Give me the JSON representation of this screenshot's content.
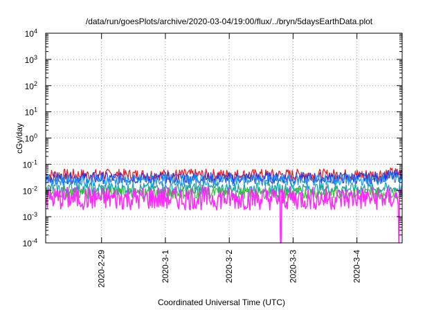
{
  "chart_data": {
    "type": "line",
    "title": "/data/run/goesPlots/archive/2020-03-04/19:00/flux/../bryn/5daysEarthData.plot",
    "xlabel": "Coordinated Universal Time (UTC)",
    "ylabel": "cGy/day",
    "y_scale": "log",
    "ylim": [
      0.0001,
      10000
    ],
    "y_ticks": [
      {
        "value": 10000,
        "base": "10",
        "exp": "4"
      },
      {
        "value": 1000,
        "base": "10",
        "exp": "3"
      },
      {
        "value": 100,
        "base": "10",
        "exp": "2"
      },
      {
        "value": 10,
        "base": "10",
        "exp": "1"
      },
      {
        "value": 1,
        "base": "10",
        "exp": "0"
      },
      {
        "value": 0.1,
        "base": "10",
        "exp": "-1"
      },
      {
        "value": 0.01,
        "base": "10",
        "exp": "-2"
      },
      {
        "value": 0.001,
        "base": "10",
        "exp": "-3"
      },
      {
        "value": 0.0001,
        "base": "10",
        "exp": "-4"
      }
    ],
    "xlim": [
      "2020-02-28 03:00",
      "2020-03-04 17:00"
    ],
    "x_ticks": [
      {
        "value": "2020-02-29",
        "label": "2020-2-29"
      },
      {
        "value": "2020-03-01",
        "label": "2020-3-1"
      },
      {
        "value": "2020-03-02",
        "label": "2020-3-2"
      },
      {
        "value": "2020-03-03",
        "label": "2020-3-3"
      },
      {
        "value": "2020-03-04",
        "label": "2020-3-4"
      }
    ],
    "grid": "dotted, on major ticks",
    "legend": "none",
    "series": [
      {
        "color": "#e8141c",
        "points": [
          {
            "x": "2020-02-28 03:00",
            "y": 0.04
          },
          {
            "x": "2020-02-29 00:00",
            "y": 0.04
          },
          {
            "x": "2020-03-01 00:00",
            "y": 0.04
          },
          {
            "x": "2020-03-02 00:00",
            "y": 0.04
          },
          {
            "x": "2020-03-03 00:00",
            "y": 0.04
          },
          {
            "x": "2020-03-04 00:00",
            "y": 0.04
          },
          {
            "x": "2020-03-04 17:00",
            "y": 0.045
          }
        ]
      },
      {
        "color": "#2030e0",
        "points": [
          {
            "x": "2020-02-28 03:00",
            "y": 0.03
          },
          {
            "x": "2020-02-29 00:00",
            "y": 0.03
          },
          {
            "x": "2020-03-01 00:00",
            "y": 0.03
          },
          {
            "x": "2020-03-02 00:00",
            "y": 0.03
          },
          {
            "x": "2020-03-03 00:00",
            "y": 0.03
          },
          {
            "x": "2020-03-04 00:00",
            "y": 0.03
          },
          {
            "x": "2020-03-04 17:00",
            "y": 0.035
          }
        ]
      },
      {
        "color": "#10a0a0",
        "points": [
          {
            "x": "2020-02-28 03:00",
            "y": 0.012
          },
          {
            "x": "2020-02-29 00:00",
            "y": 0.012
          },
          {
            "x": "2020-03-01 00:00",
            "y": 0.012
          },
          {
            "x": "2020-03-02 00:00",
            "y": 0.012
          },
          {
            "x": "2020-03-03 00:00",
            "y": 0.012
          },
          {
            "x": "2020-03-04 00:00",
            "y": 0.012
          },
          {
            "x": "2020-03-04 17:00",
            "y": 0.012
          }
        ]
      },
      {
        "color": "#30c030",
        "points": [
          {
            "x": "2020-02-28 03:00",
            "y": 0.008
          },
          {
            "x": "2020-02-29 00:00",
            "y": 0.008
          },
          {
            "x": "2020-03-01 00:00",
            "y": 0.008
          },
          {
            "x": "2020-03-02 00:00",
            "y": 0.008
          },
          {
            "x": "2020-03-03 00:00",
            "y": 0.008
          },
          {
            "x": "2020-03-04 00:00",
            "y": 0.008
          },
          {
            "x": "2020-03-04 17:00",
            "y": 0.008
          }
        ]
      },
      {
        "color": "#2090f0",
        "points": [
          {
            "x": "2020-02-28 03:00",
            "y": 0.025
          },
          {
            "x": "2020-02-29 00:00",
            "y": 0.025
          },
          {
            "x": "2020-03-01 00:00",
            "y": 0.025
          },
          {
            "x": "2020-03-02 00:00",
            "y": 0.025
          },
          {
            "x": "2020-03-03 00:00",
            "y": 0.025
          },
          {
            "x": "2020-03-04 00:00",
            "y": 0.025
          },
          {
            "x": "2020-03-04 17:00",
            "y": 0.03
          }
        ]
      },
      {
        "color": "#ff20ff",
        "points": [
          {
            "x": "2020-02-28 03:00",
            "y": 0.005
          },
          {
            "x": "2020-02-29 00:00",
            "y": 0.005
          },
          {
            "x": "2020-03-01 00:00",
            "y": 0.005
          },
          {
            "x": "2020-03-02 00:00",
            "y": 0.005
          },
          {
            "x": "2020-03-02 19:00",
            "y": 0.005
          },
          {
            "x": "2020-03-02 19:30",
            "y": 0.0001
          },
          {
            "x": "2020-03-02 20:00",
            "y": 0.005
          },
          {
            "x": "2020-03-03 00:00",
            "y": 0.005
          },
          {
            "x": "2020-03-04 00:00",
            "y": 0.005
          },
          {
            "x": "2020-03-04 15:30",
            "y": 0.005
          },
          {
            "x": "2020-03-04 15:45",
            "y": 0.0001
          },
          {
            "x": "2020-03-04 16:00",
            "y": 0.005
          },
          {
            "x": "2020-03-04 17:00",
            "y": 0.005
          }
        ]
      }
    ]
  }
}
